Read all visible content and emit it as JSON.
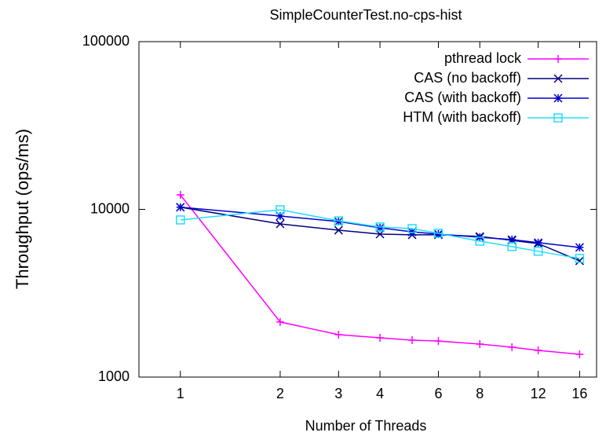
{
  "chart_data": {
    "type": "line",
    "title": "SimpleCounterTest.no-cps-hist",
    "x_label": "Number of Threads",
    "y_label": "Throughput (ops/ms)",
    "x_scale": "log",
    "y_scale": "log",
    "legend": "top-right",
    "xlim": [
      0.75,
      18
    ],
    "xticks": [
      1,
      2,
      3,
      4,
      6,
      8,
      12,
      16
    ],
    "ylim": [
      1000,
      100000
    ],
    "yticks": [
      1000,
      10000,
      100000
    ],
    "x": [
      1,
      2,
      3,
      4,
      5,
      6,
      8,
      10,
      12,
      16
    ],
    "series": [
      {
        "name": "pthread lock",
        "color": "#ff00ff",
        "marker": "plus",
        "values": [
          12200,
          2130,
          1790,
          1715,
          1660,
          1640,
          1573,
          1507,
          1443,
          1367
        ]
      },
      {
        "name": "CAS (no backoff)",
        "color": "#000080",
        "marker": "cross",
        "values": [
          10300,
          8190,
          7510,
          7120,
          7050,
          7050,
          6890,
          6530,
          6250,
          4930
        ]
      },
      {
        "name": "CAS (with backoff)",
        "color": "#0000cc",
        "marker": "star",
        "values": [
          10300,
          9120,
          8460,
          7760,
          7340,
          7120,
          6820,
          6600,
          6330,
          5930
        ]
      },
      {
        "name": "HTM (with backoff)",
        "color": "#22ddff",
        "marker": "square",
        "values": [
          8650,
          9950,
          8540,
          7850,
          7680,
          7200,
          6460,
          6000,
          5620,
          5100
        ]
      }
    ]
  }
}
